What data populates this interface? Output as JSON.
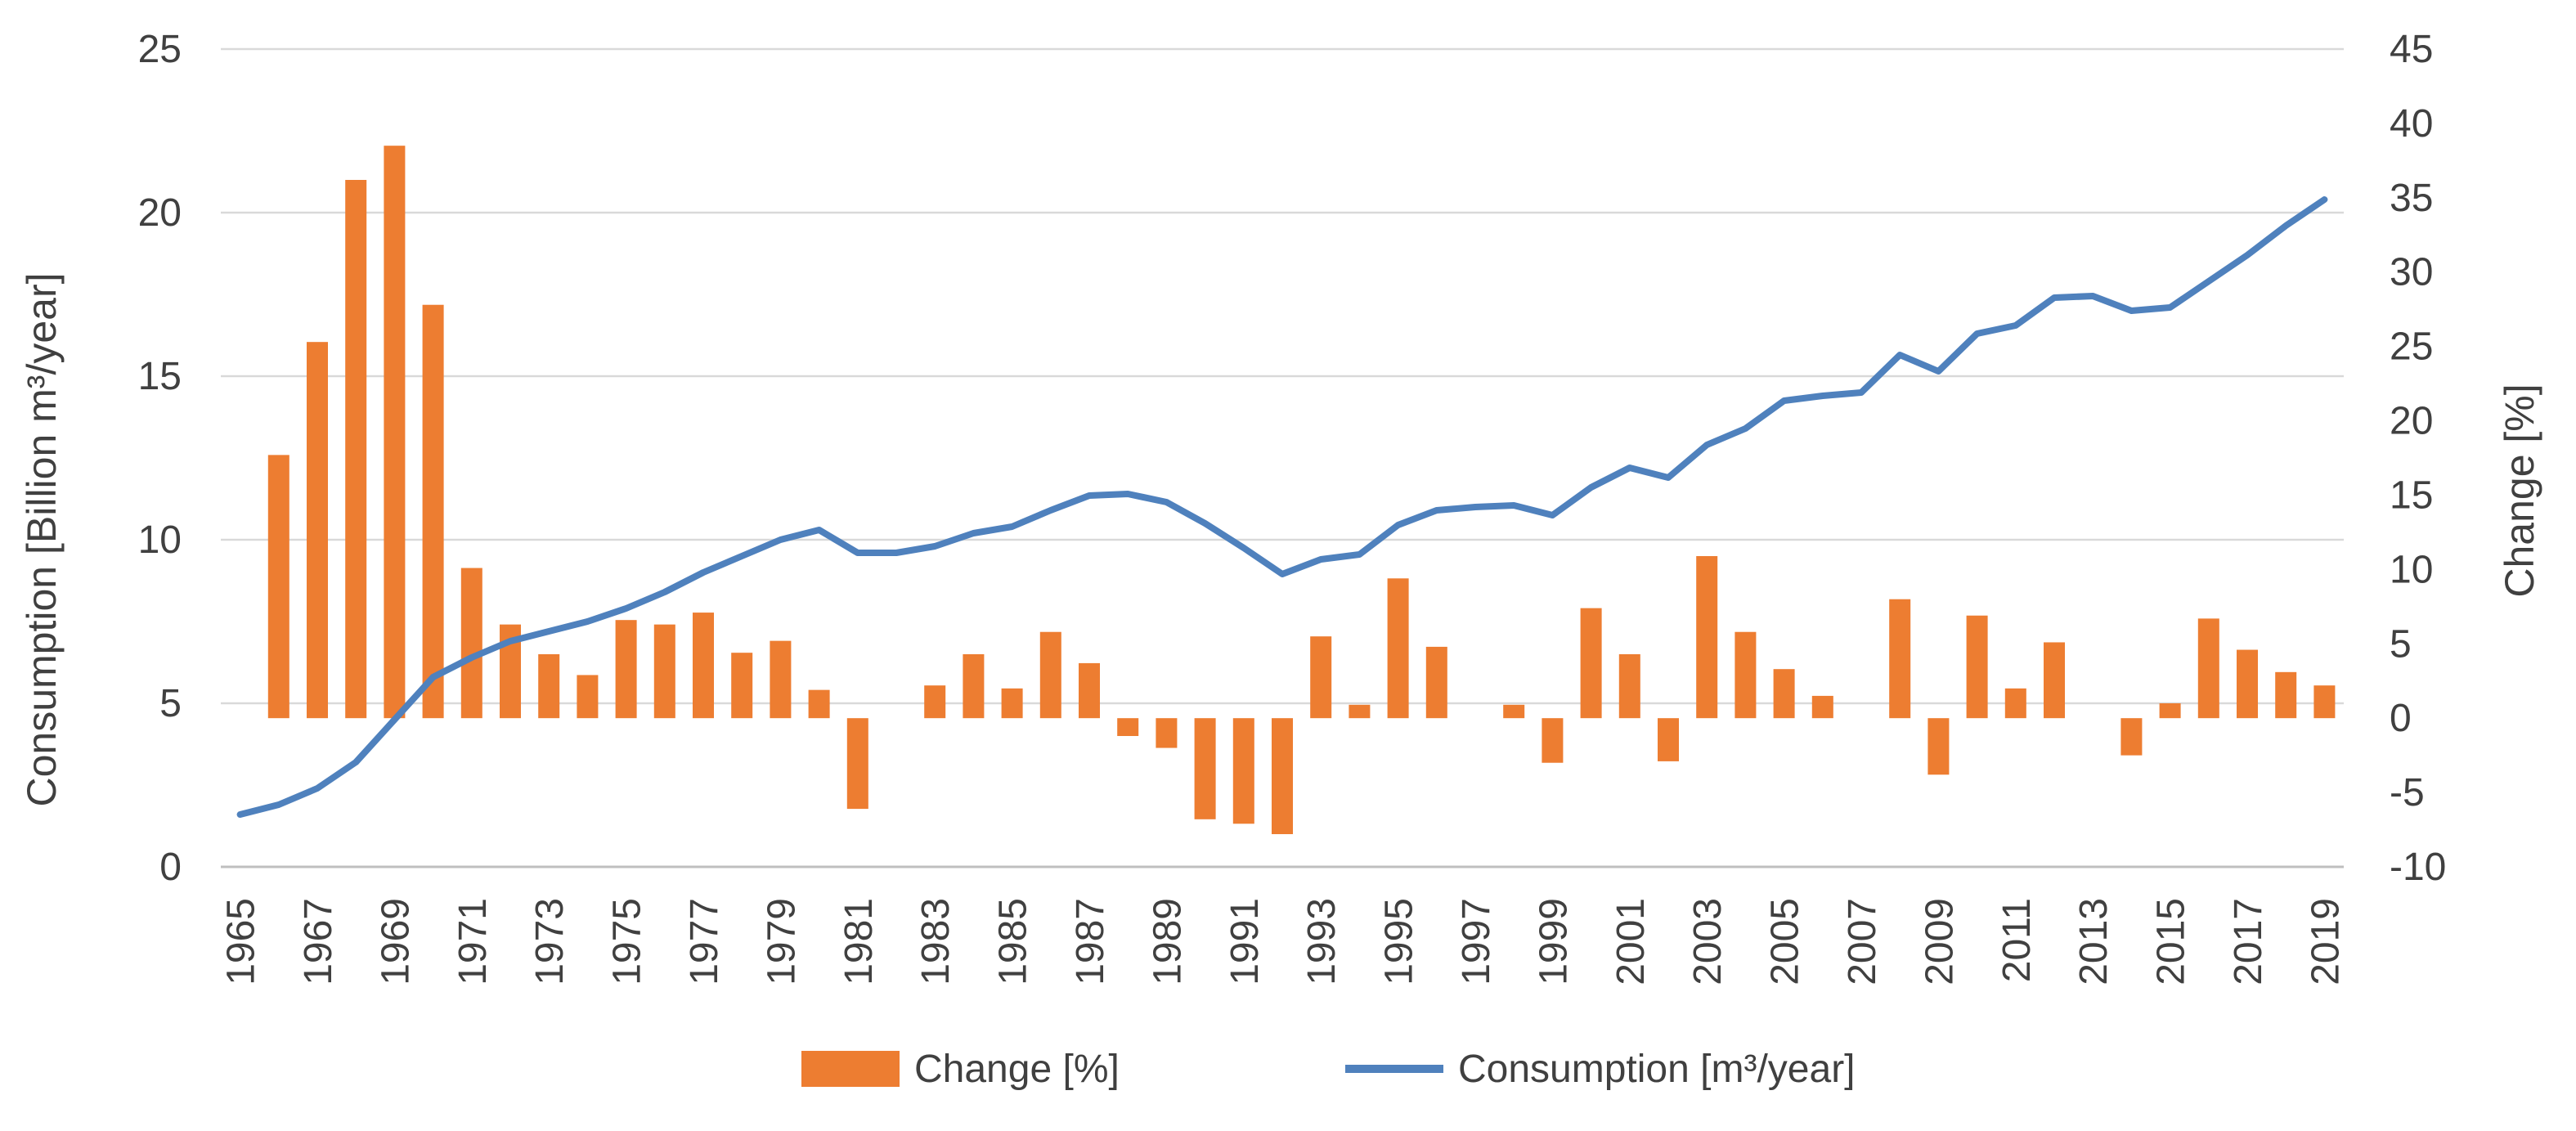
{
  "chart_data": {
    "type": "combo",
    "title": "",
    "categories": [
      1965,
      1966,
      1967,
      1968,
      1969,
      1970,
      1971,
      1972,
      1973,
      1974,
      1975,
      1976,
      1977,
      1978,
      1979,
      1980,
      1981,
      1982,
      1983,
      1984,
      1985,
      1986,
      1987,
      1988,
      1989,
      1990,
      1991,
      1992,
      1993,
      1994,
      1995,
      1996,
      1997,
      1998,
      1999,
      2000,
      2001,
      2002,
      2003,
      2004,
      2005,
      2006,
      2007,
      2008,
      2009,
      2010,
      2011,
      2012,
      2013,
      2014,
      2015,
      2016,
      2017,
      2018,
      2019
    ],
    "x_tick_labels": [
      "1965",
      "1967",
      "1969",
      "1971",
      "1973",
      "1975",
      "1977",
      "1979",
      "1981",
      "1983",
      "1985",
      "1987",
      "1989",
      "1991",
      "1993",
      "1995",
      "1997",
      "1999",
      "2001",
      "2003",
      "2005",
      "2007",
      "2009",
      "2011",
      "2013",
      "2015",
      "2017",
      "2019"
    ],
    "series": [
      {
        "name": "Change [%]",
        "type": "bar",
        "axis": "right",
        "color": "#ED7D31",
        "values": [
          null,
          17.7,
          25.3,
          36.2,
          38.5,
          27.8,
          10.1,
          6.3,
          4.3,
          2.9,
          6.6,
          6.3,
          7.1,
          4.4,
          5.2,
          1.9,
          -6.1,
          0,
          2.2,
          4.3,
          2.0,
          5.8,
          3.7,
          -1.2,
          -2.0,
          -6.8,
          -7.1,
          -7.8,
          5.5,
          0.9,
          9.4,
          4.8,
          0,
          0.9,
          -3.0,
          7.4,
          4.3,
          -2.9,
          10.9,
          5.8,
          3.3,
          1.5,
          0,
          8.0,
          -3.8,
          6.9,
          2.0,
          5.1,
          0,
          -2.5,
          1.0,
          6.7,
          4.6,
          3.1,
          2.2
        ]
      },
      {
        "name": "Consumption [m³/year]",
        "type": "line",
        "axis": "left",
        "color": "#4F81BD",
        "values": [
          1.6,
          1.9,
          2.4,
          3.2,
          4.5,
          5.8,
          6.4,
          6.9,
          7.2,
          7.5,
          7.9,
          8.4,
          9.0,
          9.5,
          10.0,
          10.3,
          9.6,
          9.6,
          9.8,
          10.2,
          10.4,
          10.9,
          11.35,
          11.4,
          11.15,
          10.5,
          9.75,
          8.95,
          9.4,
          9.55,
          10.45,
          10.9,
          11.0,
          11.05,
          10.75,
          11.6,
          12.2,
          11.9,
          12.9,
          13.4,
          14.25,
          14.4,
          14.5,
          15.65,
          15.15,
          16.3,
          16.55,
          17.4,
          17.45,
          17.0,
          17.1,
          17.9,
          18.7,
          19.6,
          20.4
        ]
      }
    ],
    "ylabel_left": "Consumption [Billion m³/year]",
    "ylabel_right": "Change [%]",
    "axes": {
      "left": {
        "min": 0,
        "max": 25,
        "ticks": [
          0,
          5,
          10,
          15,
          20,
          25
        ]
      },
      "right": {
        "min": -10,
        "max": 45,
        "ticks": [
          -10,
          -5,
          0,
          5,
          10,
          15,
          20,
          25,
          30,
          35,
          40,
          45
        ]
      }
    },
    "grid": true,
    "legend_position": "bottom",
    "colors": {
      "bar": "#ED7D31",
      "line": "#4F81BD",
      "gridline": "#D9D9D9",
      "axis_line": "#BFBFBF",
      "text": "#404040",
      "background": "#FFFFFF"
    }
  }
}
